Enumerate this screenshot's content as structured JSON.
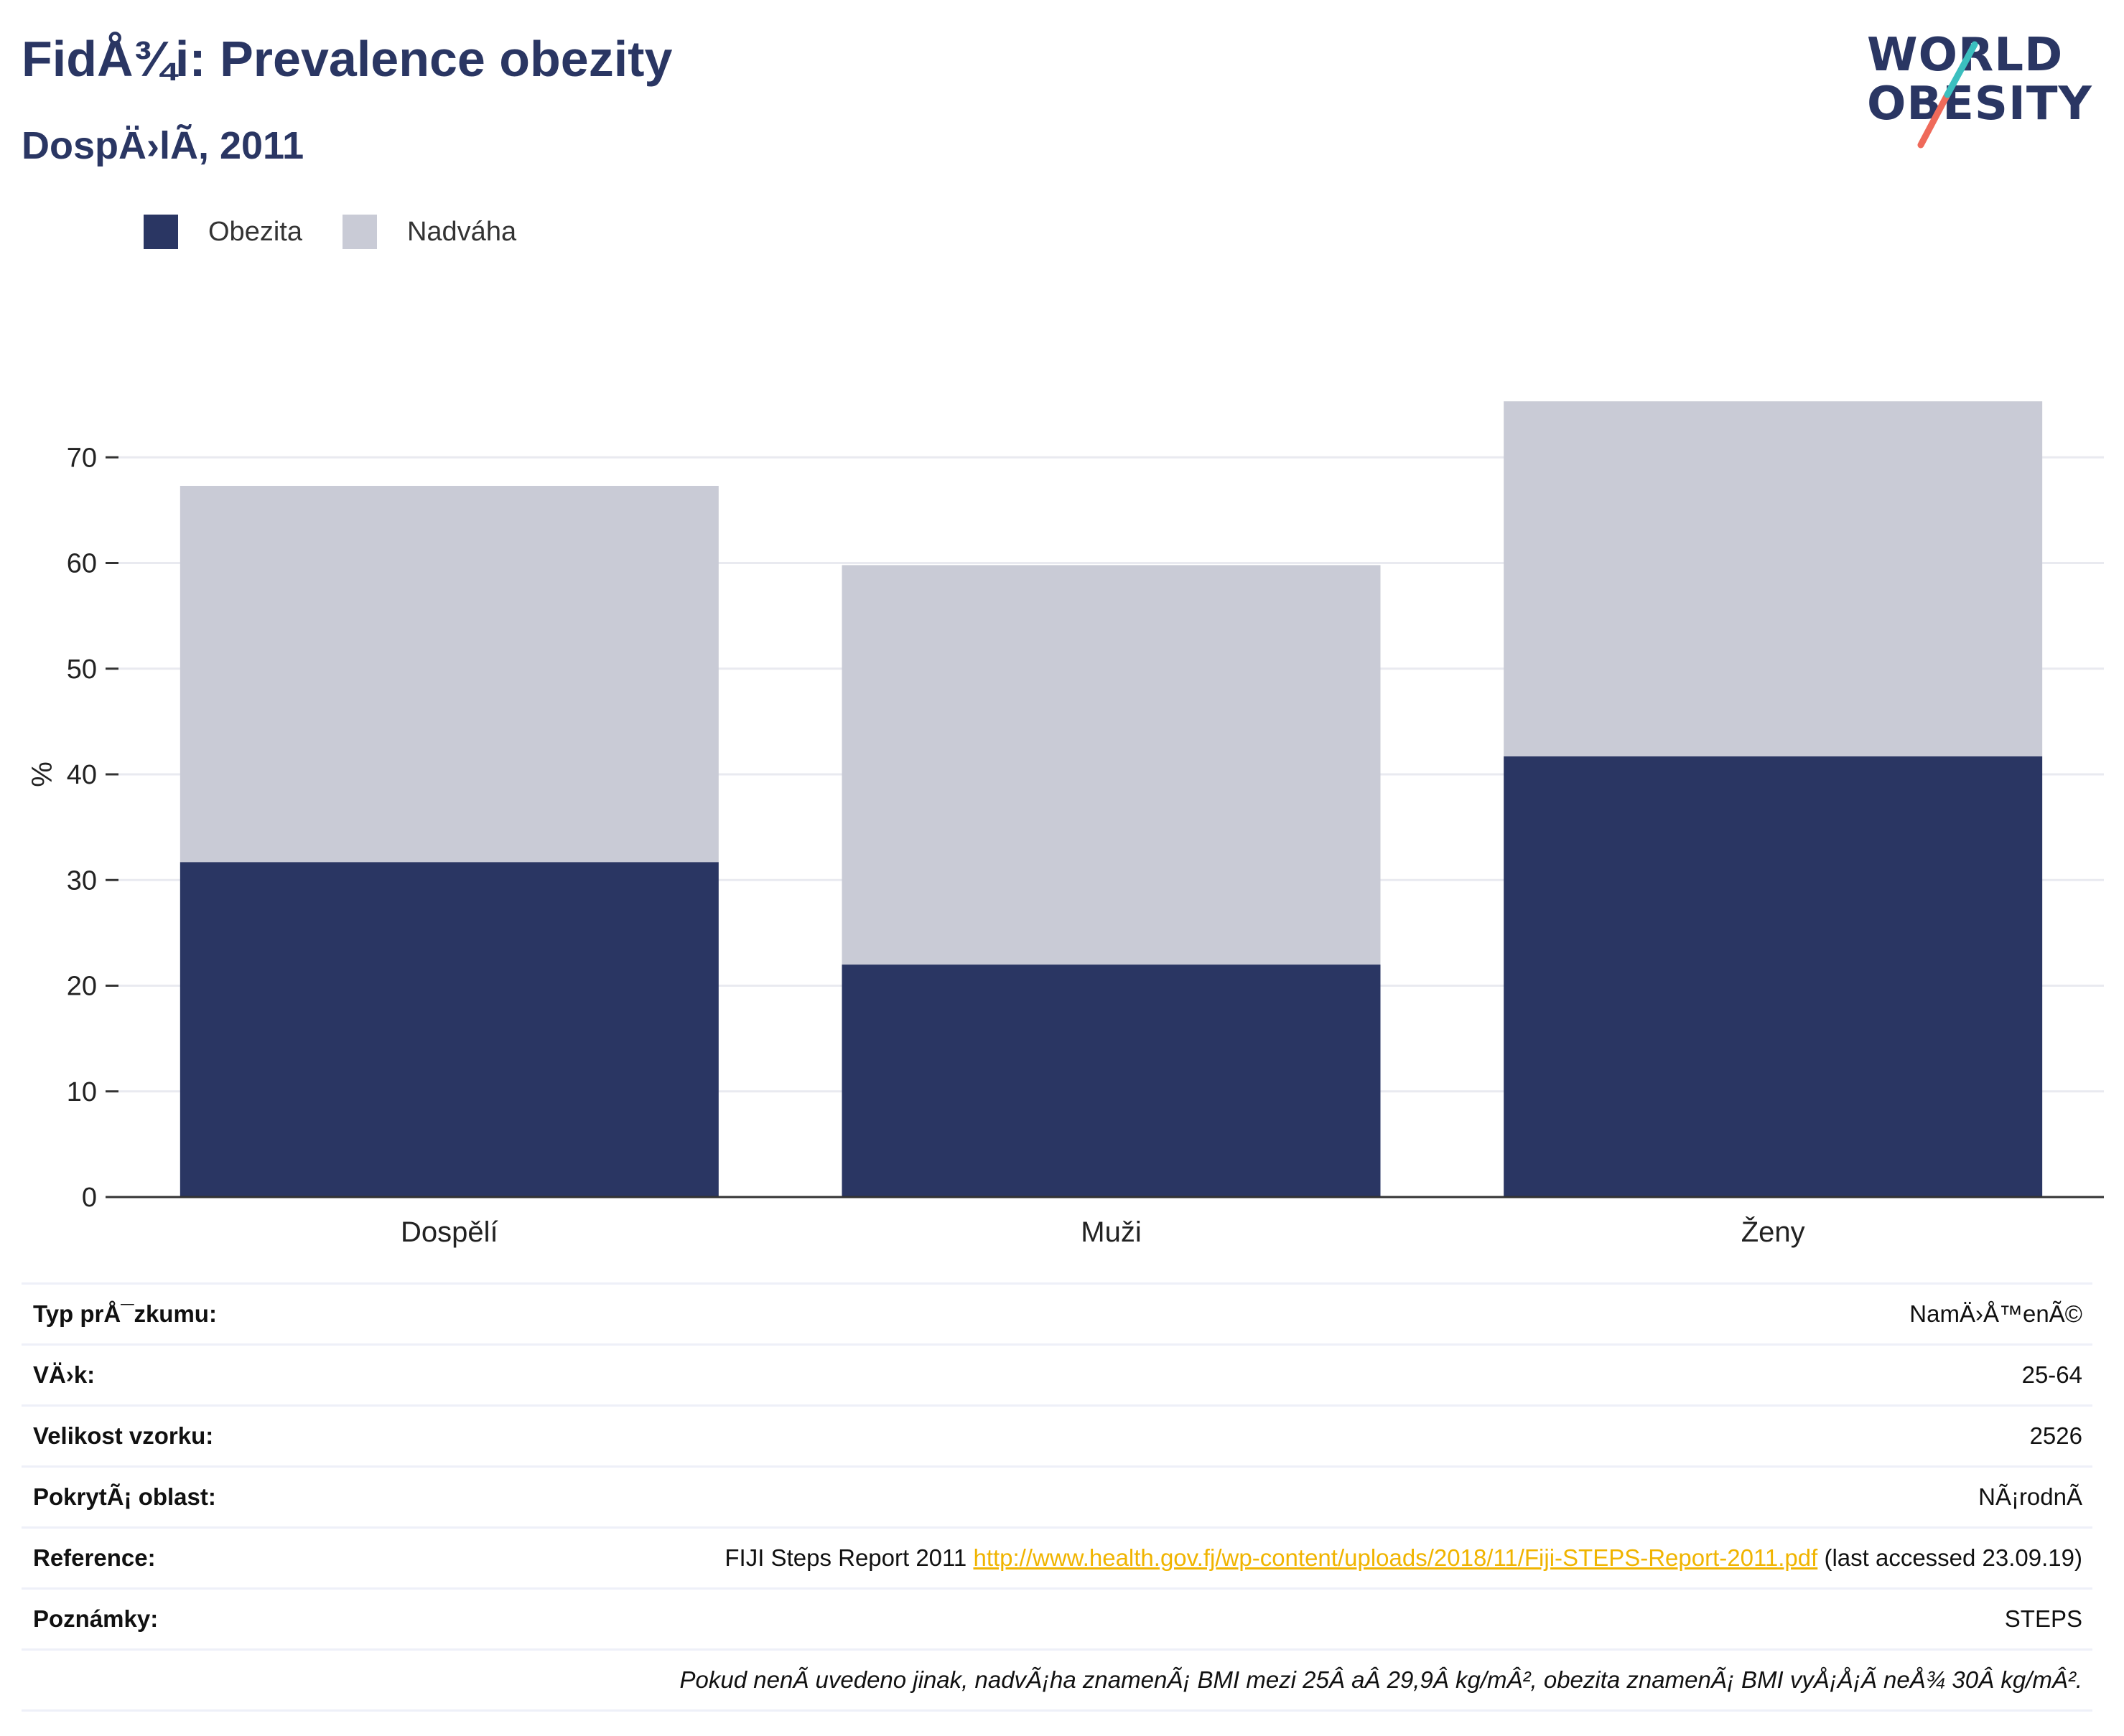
{
  "header": {
    "title": "FidÅ¾i: Prevalence obezity",
    "subtitle": "DospÄ›lÃ, 2011"
  },
  "logo": {
    "line1": "WORLD",
    "line2": "OBESITY",
    "accent_teal": "#3bbfbf",
    "accent_coral": "#ef6a5a"
  },
  "colors": {
    "obesity": "#2a3663",
    "overweight": "#c9cbd6",
    "link": "#f0b400"
  },
  "chart_data": {
    "type": "bar",
    "stacked": true,
    "categories": [
      "Dospělí",
      "Muži",
      "Ženy"
    ],
    "series": [
      {
        "name": "Obezita",
        "color": "#2a3663",
        "values": [
          31.7,
          22.0,
          41.7
        ]
      },
      {
        "name": "Nadváha",
        "color": "#c9cbd6",
        "values": [
          35.6,
          37.8,
          33.6
        ]
      }
    ],
    "ylabel": "%",
    "ylim": [
      0,
      80
    ],
    "yticks": [
      0,
      10,
      20,
      30,
      40,
      50,
      60,
      70
    ],
    "grid": true,
    "legend_position": "top-left"
  },
  "info": {
    "rows": [
      {
        "label": "Typ prÅ¯zkumu:",
        "value": "NamÄ›Å™enÃ©"
      },
      {
        "label": "VÄ›k:",
        "value": "25-64"
      },
      {
        "label": "Velikost vzorku:",
        "value": "2526"
      },
      {
        "label": "PokrytÃ¡ oblast:",
        "value": "NÃ¡rodnÃ"
      }
    ],
    "reference": {
      "label": "Reference:",
      "prefix": "FIJI Steps Report 2011 ",
      "url": "http://www.health.gov.fj/wp-content/uploads/2018/11/Fiji-STEPS-Report-2011.pdf",
      "suffix": " (last accessed 23.09.19)"
    },
    "notes": {
      "label": "Poznámky:",
      "value": "STEPS"
    },
    "footnote": "Pokud nenÃ uvedeno jinak, nadvÃ¡ha znamenÃ¡ BMI mezi 25Â aÂ 29,9Â kg/mÂ², obezita znamenÃ¡ BMI vyÅ¡Å¡Ã neÅ¾ 30Â kg/mÂ²."
  }
}
